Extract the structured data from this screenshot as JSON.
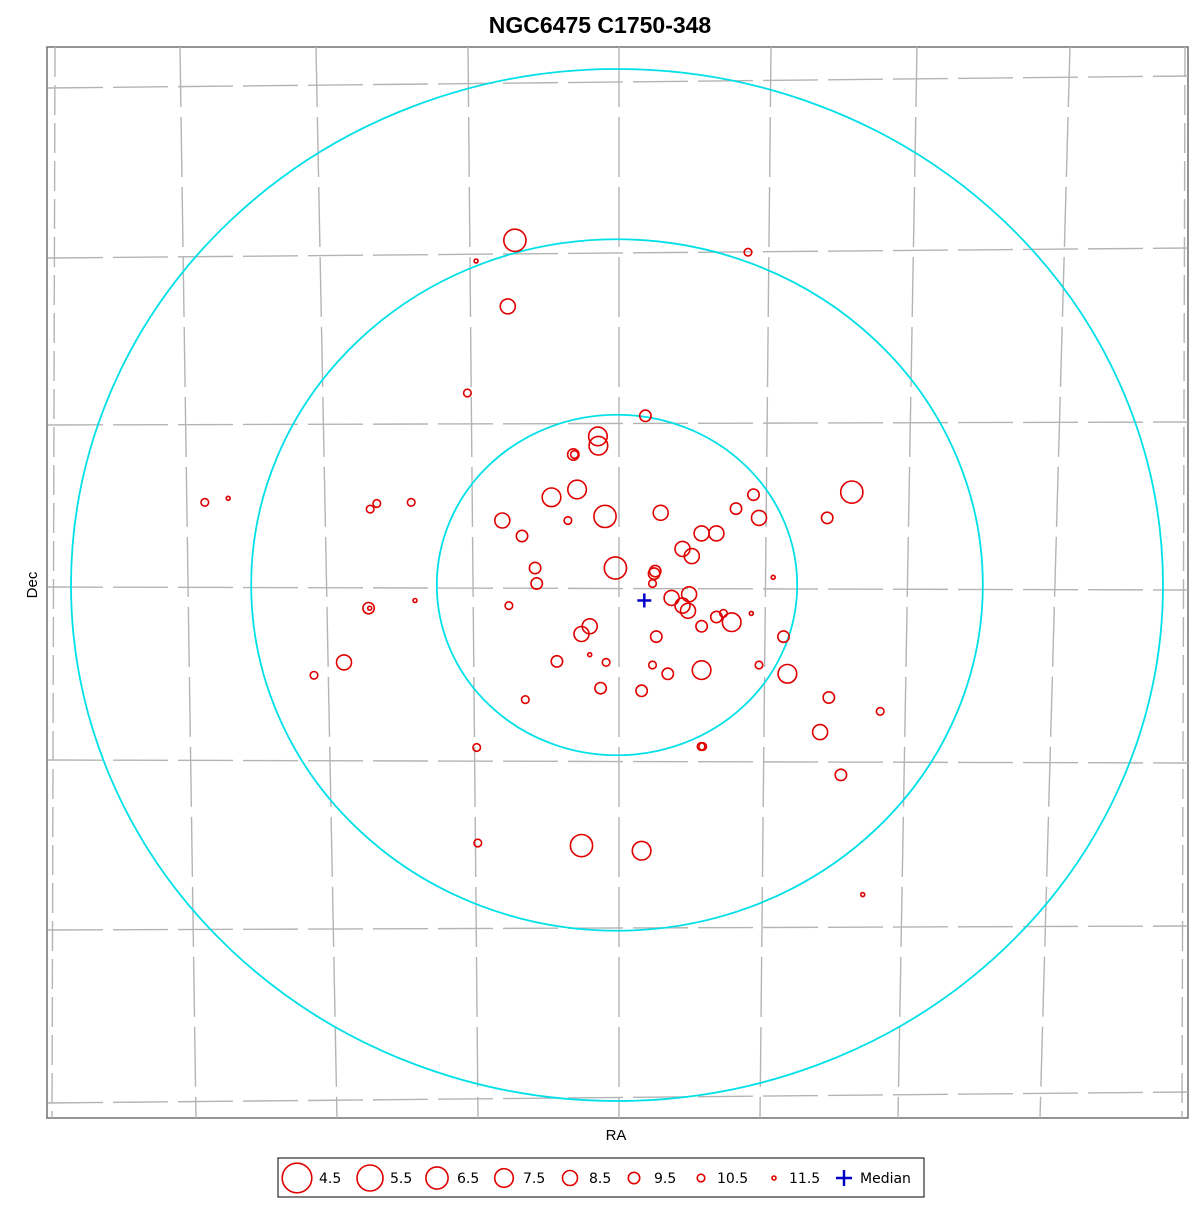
{
  "chart_data": {
    "type": "scatter",
    "title": "NGC6475  C1750-348",
    "xlabel": "RA",
    "ylabel": "Dec",
    "xlim": [
      -1,
      1
    ],
    "ylim": [
      -1,
      1
    ],
    "grid": "on",
    "legend_position": "bottom-center",
    "colors": {
      "stars": "#e00000",
      "rings": "#00e0e8",
      "median": "#0000c8",
      "grid": "#b4b4b4",
      "frame": "#707070"
    },
    "center": [
      0.0,
      0.0
    ],
    "rings": [
      0.33,
      0.67,
      1.0
    ],
    "median": [
      0.05,
      -0.03
    ],
    "legend": [
      {
        "mag": 4.5,
        "label": "4.5"
      },
      {
        "mag": 5.5,
        "label": "5.5"
      },
      {
        "mag": 6.5,
        "label": "6.5"
      },
      {
        "mag": 7.5,
        "label": "7.5"
      },
      {
        "mag": 8.5,
        "label": "8.5"
      },
      {
        "mag": 9.5,
        "label": "9.5"
      },
      {
        "mag": 10.5,
        "label": "10.5"
      },
      {
        "mag": 11.5,
        "label": "11.5"
      }
    ],
    "median_label": "Median",
    "stars": [
      {
        "x": -0.187,
        "y": 0.668,
        "mag": 6.5
      },
      {
        "x": -0.258,
        "y": 0.628,
        "mag": 11.5
      },
      {
        "x": 0.24,
        "y": 0.645,
        "mag": 10.5
      },
      {
        "x": -0.2,
        "y": 0.54,
        "mag": 8.5
      },
      {
        "x": -0.274,
        "y": 0.372,
        "mag": 10.5
      },
      {
        "x": 0.052,
        "y": 0.328,
        "mag": 9.5
      },
      {
        "x": -0.035,
        "y": 0.288,
        "mag": 7.5
      },
      {
        "x": -0.034,
        "y": 0.27,
        "mag": 7.5
      },
      {
        "x": -0.08,
        "y": 0.253,
        "mag": 9.5
      },
      {
        "x": -0.078,
        "y": 0.253,
        "mag": 10.5
      },
      {
        "x": -0.073,
        "y": 0.185,
        "mag": 7.5
      },
      {
        "x": -0.12,
        "y": 0.17,
        "mag": 7.5
      },
      {
        "x": -0.377,
        "y": 0.16,
        "mag": 10.5
      },
      {
        "x": -0.44,
        "y": 0.158,
        "mag": 10.5
      },
      {
        "x": -0.755,
        "y": 0.16,
        "mag": 10.5
      },
      {
        "x": -0.712,
        "y": 0.168,
        "mag": 11.5
      },
      {
        "x": -0.452,
        "y": 0.147,
        "mag": 10.5
      },
      {
        "x": -0.21,
        "y": 0.125,
        "mag": 8.5
      },
      {
        "x": -0.09,
        "y": 0.125,
        "mag": 10.5
      },
      {
        "x": -0.022,
        "y": 0.133,
        "mag": 6.5
      },
      {
        "x": 0.08,
        "y": 0.14,
        "mag": 8.5
      },
      {
        "x": 0.218,
        "y": 0.148,
        "mag": 9.5
      },
      {
        "x": 0.25,
        "y": 0.175,
        "mag": 9.5
      },
      {
        "x": 0.26,
        "y": 0.13,
        "mag": 8.5
      },
      {
        "x": 0.385,
        "y": 0.13,
        "mag": 9.5
      },
      {
        "x": 0.43,
        "y": 0.18,
        "mag": 6.5
      },
      {
        "x": -0.174,
        "y": 0.095,
        "mag": 9.5
      },
      {
        "x": 0.155,
        "y": 0.1,
        "mag": 8.5
      },
      {
        "x": 0.182,
        "y": 0.1,
        "mag": 8.5
      },
      {
        "x": 0.12,
        "y": 0.07,
        "mag": 8.5
      },
      {
        "x": 0.137,
        "y": 0.056,
        "mag": 8.5
      },
      {
        "x": -0.003,
        "y": 0.033,
        "mag": 6.5
      },
      {
        "x": -0.15,
        "y": 0.033,
        "mag": 9.5
      },
      {
        "x": 0.07,
        "y": 0.027,
        "mag": 9.5
      },
      {
        "x": 0.068,
        "y": 0.022,
        "mag": 9.5
      },
      {
        "x": -0.147,
        "y": 0.003,
        "mag": 9.5
      },
      {
        "x": 0.065,
        "y": 0.003,
        "mag": 10.5
      },
      {
        "x": 0.286,
        "y": 0.015,
        "mag": 11.5
      },
      {
        "x": 0.132,
        "y": -0.018,
        "mag": 8.5
      },
      {
        "x": 0.1,
        "y": -0.025,
        "mag": 8.5
      },
      {
        "x": 0.12,
        "y": -0.04,
        "mag": 8.5
      },
      {
        "x": 0.13,
        "y": -0.05,
        "mag": 8.5
      },
      {
        "x": 0.195,
        "y": -0.055,
        "mag": 10.5
      },
      {
        "x": 0.182,
        "y": -0.062,
        "mag": 9.5
      },
      {
        "x": 0.21,
        "y": -0.072,
        "mag": 7.5
      },
      {
        "x": 0.246,
        "y": -0.055,
        "mag": 11.5
      },
      {
        "x": -0.198,
        "y": -0.04,
        "mag": 10.5
      },
      {
        "x": -0.455,
        "y": -0.045,
        "mag": 9.5
      },
      {
        "x": -0.453,
        "y": -0.045,
        "mag": 11.5
      },
      {
        "x": -0.37,
        "y": -0.03,
        "mag": 11.5
      },
      {
        "x": 0.155,
        "y": -0.08,
        "mag": 9.5
      },
      {
        "x": -0.05,
        "y": -0.08,
        "mag": 8.5
      },
      {
        "x": -0.065,
        "y": -0.095,
        "mag": 8.5
      },
      {
        "x": 0.072,
        "y": -0.1,
        "mag": 9.5
      },
      {
        "x": 0.305,
        "y": -0.1,
        "mag": 9.5
      },
      {
        "x": -0.05,
        "y": -0.135,
        "mag": 11.5
      },
      {
        "x": -0.02,
        "y": -0.15,
        "mag": 10.5
      },
      {
        "x": -0.11,
        "y": -0.148,
        "mag": 9.5
      },
      {
        "x": 0.065,
        "y": -0.155,
        "mag": 10.5
      },
      {
        "x": 0.26,
        "y": -0.155,
        "mag": 10.5
      },
      {
        "x": 0.155,
        "y": -0.165,
        "mag": 7.5
      },
      {
        "x": 0.093,
        "y": -0.172,
        "mag": 9.5
      },
      {
        "x": 0.312,
        "y": -0.172,
        "mag": 7.5
      },
      {
        "x": -0.5,
        "y": -0.15,
        "mag": 8.5
      },
      {
        "x": -0.555,
        "y": -0.175,
        "mag": 10.5
      },
      {
        "x": -0.03,
        "y": -0.2,
        "mag": 9.5
      },
      {
        "x": 0.045,
        "y": -0.205,
        "mag": 9.5
      },
      {
        "x": -0.168,
        "y": -0.222,
        "mag": 10.5
      },
      {
        "x": 0.388,
        "y": -0.218,
        "mag": 9.5
      },
      {
        "x": 0.482,
        "y": -0.245,
        "mag": 10.5
      },
      {
        "x": 0.372,
        "y": -0.285,
        "mag": 8.5
      },
      {
        "x": -0.257,
        "y": -0.315,
        "mag": 10.5
      },
      {
        "x": 0.154,
        "y": -0.313,
        "mag": 10.5
      },
      {
        "x": 0.157,
        "y": -0.313,
        "mag": 10.5
      },
      {
        "x": 0.41,
        "y": -0.368,
        "mag": 9.5
      },
      {
        "x": -0.255,
        "y": -0.5,
        "mag": 10.5
      },
      {
        "x": -0.065,
        "y": -0.505,
        "mag": 6.5
      },
      {
        "x": 0.045,
        "y": -0.515,
        "mag": 7.5
      },
      {
        "x": 0.45,
        "y": -0.6,
        "mag": 11.5
      }
    ]
  }
}
